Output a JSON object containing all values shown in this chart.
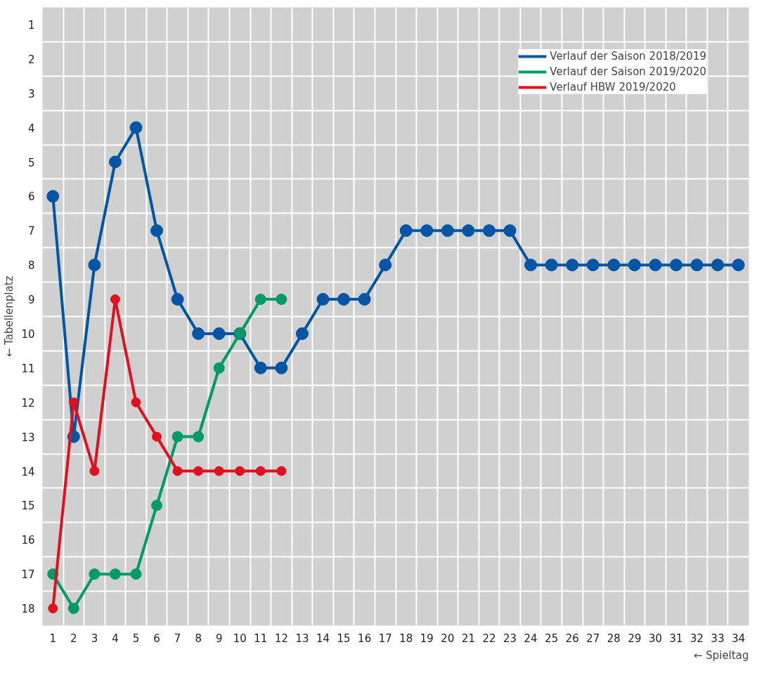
{
  "chart_data": {
    "type": "line",
    "xlabel": "← Spieltag",
    "ylabel": "← Tabellenplatz",
    "x": [
      1,
      2,
      3,
      4,
      5,
      6,
      7,
      8,
      9,
      10,
      11,
      12,
      13,
      14,
      15,
      16,
      17,
      18,
      19,
      20,
      21,
      22,
      23,
      24,
      25,
      26,
      27,
      28,
      29,
      30,
      31,
      32,
      33,
      34
    ],
    "series": [
      {
        "name": "Verlauf der Saison 2018/2019",
        "color": "#0055a4",
        "values": [
          6,
          13,
          8,
          5,
          4,
          7,
          9,
          10,
          10,
          10,
          11,
          11,
          10,
          9,
          9,
          9,
          8,
          7,
          7,
          7,
          7,
          7,
          7,
          8,
          8,
          8,
          8,
          8,
          8,
          8,
          8,
          8,
          8,
          8
        ]
      },
      {
        "name": "Verlauf der Saison 2019/2020",
        "color": "#009a66",
        "values": [
          17,
          18,
          17,
          17,
          17,
          15,
          13,
          13,
          11,
          10,
          9,
          9,
          null,
          null,
          null,
          null,
          null,
          null,
          null,
          null,
          null,
          null,
          null,
          null,
          null,
          null,
          null,
          null,
          null,
          null,
          null,
          null,
          null,
          null
        ]
      },
      {
        "name": "Verlauf HBW 2019/2020",
        "color": "#e0101e",
        "values": [
          18,
          12,
          14,
          9,
          12,
          13,
          14,
          14,
          14,
          14,
          14,
          14,
          null,
          null,
          null,
          null,
          null,
          null,
          null,
          null,
          null,
          null,
          null,
          null,
          null,
          null,
          null,
          null,
          null,
          null,
          null,
          null,
          null,
          null
        ]
      }
    ],
    "xlim": [
      0.5,
      34.5
    ],
    "ylim": [
      18.5,
      0.5
    ],
    "xticks": [
      1,
      2,
      3,
      4,
      5,
      6,
      7,
      8,
      9,
      10,
      11,
      12,
      13,
      14,
      15,
      16,
      17,
      18,
      19,
      20,
      21,
      22,
      23,
      24,
      25,
      26,
      27,
      28,
      29,
      30,
      31,
      32,
      33,
      34
    ],
    "yticks": [
      1,
      2,
      3,
      4,
      5,
      6,
      7,
      8,
      9,
      10,
      11,
      12,
      13,
      14,
      15,
      16,
      17,
      18
    ],
    "grid": true,
    "legend": "top right",
    "marker": "circle",
    "line_style": "solid"
  }
}
